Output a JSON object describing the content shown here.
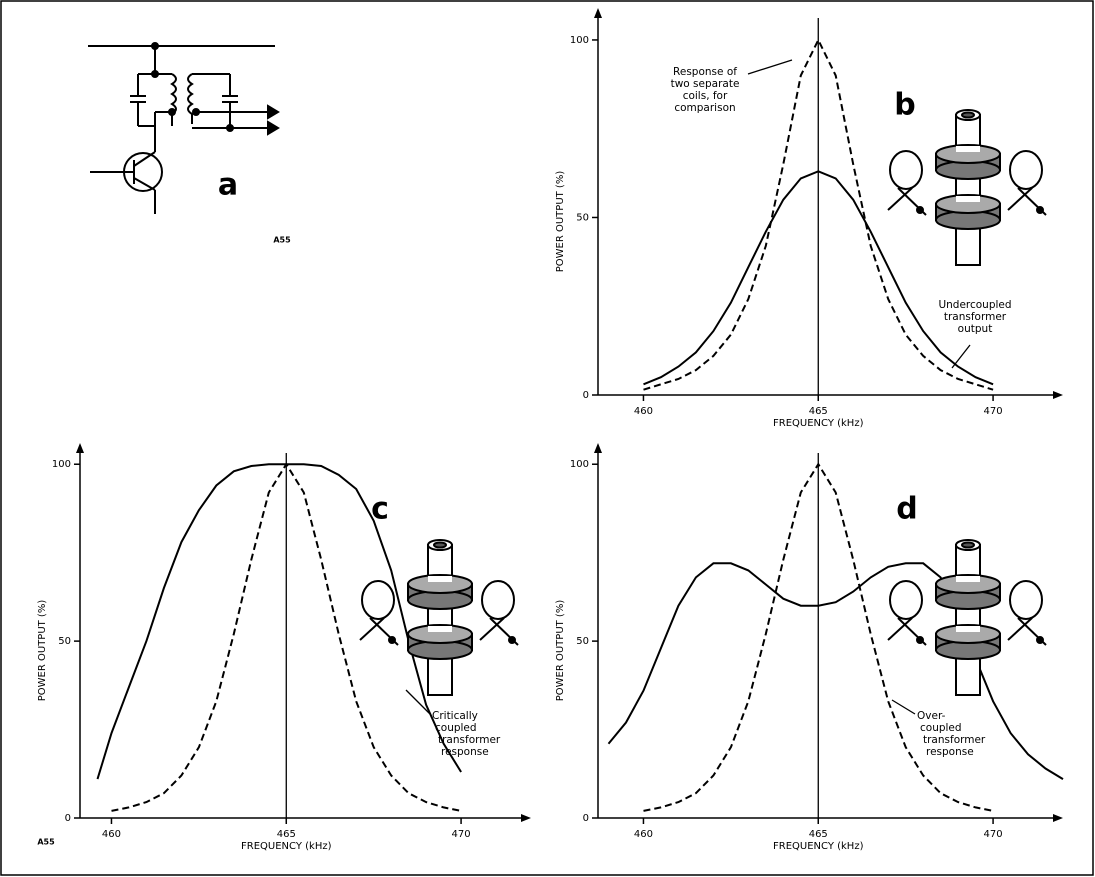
{
  "panel_a": {
    "label": "a",
    "code": "A55"
  },
  "figure_code": "A55",
  "chart_data": [
    {
      "type": "line",
      "panel": "b",
      "xlabel": "FREQUENCY (kHz)",
      "ylabel": "POWER OUTPUT (%)",
      "xlim": [
        458.7,
        472
      ],
      "xticks": [
        460,
        465,
        470
      ],
      "ylim": [
        0,
        109
      ],
      "yticks": [
        0,
        50,
        100
      ],
      "vline": 465,
      "annotations": [
        {
          "lines": [
            "Response of",
            "two separate",
            "coils, for",
            "comparison"
          ]
        },
        {
          "lines": [
            "Undercoupled",
            "transformer",
            "output"
          ]
        }
      ],
      "series": [
        {
          "color": "#000000",
          "dashed": false,
          "x": [
            460,
            460.5,
            461,
            461.5,
            462,
            462.5,
            463,
            463.5,
            464,
            464.5,
            465,
            465.5,
            466,
            466.5,
            467,
            467.5,
            468,
            468.5,
            469,
            469.5,
            470
          ],
          "values": [
            3,
            5,
            8,
            12,
            18,
            26,
            36,
            46,
            55,
            61,
            63,
            61,
            55,
            46,
            36,
            26,
            18,
            12,
            8,
            5,
            3
          ]
        },
        {
          "color": "#000000",
          "dashed": true,
          "x": [
            460,
            460.5,
            461,
            461.5,
            462,
            462.5,
            463,
            463.5,
            464,
            464.5,
            465,
            465.5,
            466,
            466.5,
            467,
            467.5,
            468,
            468.5,
            469,
            469.5,
            470
          ],
          "values": [
            1.5,
            3,
            4.5,
            7,
            11,
            17,
            27,
            42,
            65,
            90,
            100,
            90,
            65,
            42,
            27,
            17,
            11,
            7,
            4.5,
            3,
            1.5
          ]
        }
      ]
    },
    {
      "type": "line",
      "panel": "c",
      "xlabel": "FREQUENCY (kHz)",
      "ylabel": "POWER OUTPUT (%)",
      "xlim": [
        459.1,
        472
      ],
      "xticks": [
        460,
        465,
        470
      ],
      "ylim": [
        0,
        106
      ],
      "yticks": [
        0,
        50,
        100
      ],
      "vline": 465,
      "annotations": [
        {
          "lines": [
            "Critically",
            "coupled",
            "transformer",
            "response"
          ]
        }
      ],
      "series": [
        {
          "color": "#000000",
          "dashed": false,
          "x": [
            459.6,
            460,
            460.5,
            461,
            461.5,
            462,
            462.5,
            463,
            463.5,
            464,
            464.5,
            465,
            465.5,
            466,
            466.5,
            467,
            467.5,
            468,
            468.5,
            469,
            469.5,
            470
          ],
          "values": [
            11,
            24,
            37,
            50,
            65,
            78,
            87,
            94,
            98,
            99.5,
            100,
            100,
            100,
            99.5,
            97,
            93,
            84,
            70,
            50,
            32,
            21,
            13
          ]
        },
        {
          "color": "#000000",
          "dashed": true,
          "x": [
            460,
            460.5,
            461,
            461.5,
            462,
            462.5,
            463,
            463.5,
            464,
            464.5,
            465,
            465.5,
            466,
            466.5,
            467,
            467.5,
            468,
            468.5,
            469,
            469.5,
            470
          ],
          "values": [
            2,
            3,
            4.5,
            7,
            12,
            20,
            33,
            52,
            73,
            92,
            100,
            92,
            73,
            52,
            33,
            20,
            12,
            7,
            4.5,
            3,
            2
          ]
        }
      ]
    },
    {
      "type": "line",
      "panel": "d",
      "xlabel": "FREQUENCY (kHz)",
      "ylabel": "POWER OUTPUT (%)",
      "xlim": [
        458.7,
        472
      ],
      "xticks": [
        460,
        465,
        470
      ],
      "ylim": [
        0,
        106
      ],
      "yticks": [
        0,
        50,
        100
      ],
      "vline": 465,
      "annotations": [
        {
          "lines": [
            "Over-",
            "coupled",
            "transformer",
            "response"
          ]
        }
      ],
      "series": [
        {
          "color": "#000000",
          "dashed": false,
          "x": [
            459,
            459.5,
            460,
            460.5,
            461,
            461.5,
            462,
            462.5,
            463,
            463.5,
            464,
            464.5,
            465,
            465.5,
            466,
            466.5,
            467,
            467.5,
            468,
            468.5,
            469,
            469.5,
            470,
            470.5,
            471,
            471.5,
            472
          ],
          "values": [
            21,
            27,
            36,
            48,
            60,
            68,
            72,
            72,
            70,
            66,
            62,
            60,
            60,
            61,
            64,
            68,
            71,
            72,
            72,
            68,
            58,
            45,
            33,
            24,
            18,
            14,
            11
          ]
        },
        {
          "color": "#000000",
          "dashed": true,
          "x": [
            460,
            460.5,
            461,
            461.5,
            462,
            462.5,
            463,
            463.5,
            464,
            464.5,
            465,
            465.5,
            466,
            466.5,
            467,
            467.5,
            468,
            468.5,
            469,
            469.5,
            470
          ],
          "values": [
            2,
            3,
            4.5,
            7,
            12,
            20,
            33,
            52,
            73,
            92,
            100,
            92,
            73,
            52,
            33,
            20,
            12,
            7,
            4.5,
            3,
            2
          ]
        }
      ]
    }
  ]
}
